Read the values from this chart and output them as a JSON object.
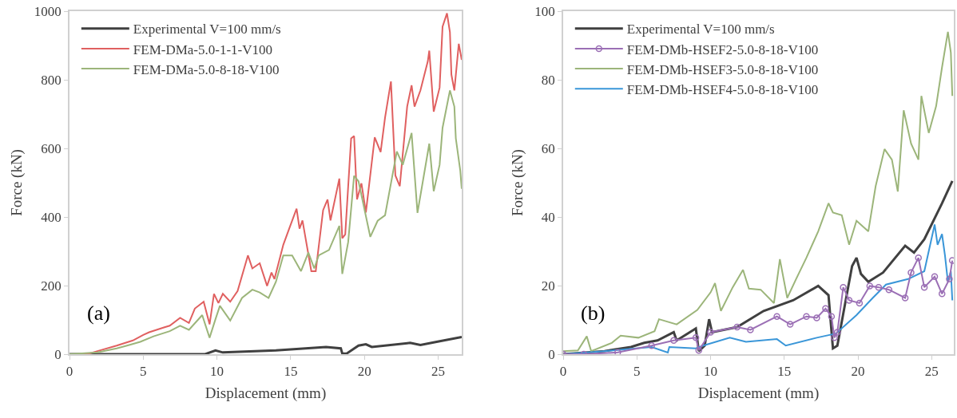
{
  "chart_data": [
    {
      "type": "line",
      "xlabel": "Displacement (mm)",
      "ylabel": "Force (kN)",
      "xlim": [
        0,
        26.6
      ],
      "ylim": [
        0,
        1000
      ],
      "xticks": [
        0,
        5,
        10,
        15,
        20,
        25
      ],
      "yticks": [
        0,
        200,
        400,
        600,
        800,
        1000
      ],
      "legend": "top left",
      "annotations": [
        "(a)"
      ],
      "series": [
        {
          "name": "Experimental V=100 mm/s",
          "color": "#404040",
          "x": [
            0,
            9.2,
            9.9,
            10.4,
            14,
            17.4,
            18.4,
            18.5,
            18.8,
            19.6,
            20.1,
            20.5,
            23.1,
            23.8,
            24.9,
            26.6
          ],
          "values": [
            0,
            0,
            11,
            5,
            11,
            21,
            17,
            2,
            2,
            25,
            29,
            21,
            33,
            27,
            36,
            50
          ]
        },
        {
          "name": "FEM-DMa-5.0-1-1-V100",
          "color": "#e06060",
          "x": [
            0,
            1.2,
            1.9,
            3.2,
            4.3,
            5,
            5.4,
            5.9,
            6.4,
            6.8,
            7.5,
            8.1,
            8.5,
            9.1,
            9.5,
            9.8,
            10.1,
            10.4,
            10.9,
            11.4,
            12.1,
            12.4,
            12.9,
            13.4,
            13.7,
            13.9,
            14.5,
            14.9,
            15.4,
            15.6,
            15.8,
            16.4,
            16.7,
            17.2,
            17.5,
            17.7,
            18.3,
            18.5,
            18.7,
            19.1,
            19.3,
            19.5,
            19.8,
            20.1,
            20.7,
            21.1,
            21.4,
            21.8,
            22.1,
            22.4,
            22.9,
            23.2,
            23.4,
            23.8,
            24.3,
            24.4,
            24.7,
            25.1,
            25.3,
            25.6,
            25.8,
            25.9,
            26.1,
            26.4,
            26.6
          ],
          "values": [
            0,
            0,
            9,
            25,
            40,
            56,
            64,
            71,
            78,
            83,
            106,
            91,
            133,
            153,
            87,
            176,
            149,
            176,
            153,
            184,
            288,
            250,
            265,
            199,
            238,
            219,
            319,
            366,
            424,
            366,
            390,
            242,
            242,
            420,
            451,
            390,
            512,
            338,
            349,
            629,
            636,
            451,
            498,
            413,
            632,
            589,
            690,
            795,
            521,
            490,
            722,
            784,
            722,
            769,
            854,
            885,
            707,
            777,
            955,
            994,
            939,
            815,
            769,
            905,
            858
          ]
        },
        {
          "name": "FEM-DMa-5.0-8-18-V100",
          "color": "#9cb57a",
          "x": [
            0,
            1.9,
            3.2,
            3.9,
            4.8,
            5.7,
            6.8,
            7.5,
            8.1,
            9,
            9.5,
            9.9,
            10.2,
            10.9,
            11.7,
            12.4,
            12.9,
            13.5,
            14,
            14.5,
            15.1,
            15.7,
            16.2,
            16.6,
            16.9,
            17.6,
            18.3,
            18.5,
            18.9,
            19.3,
            19.6,
            20.4,
            20.9,
            21.4,
            22.2,
            22.6,
            23.2,
            23.6,
            24.4,
            24.7,
            25.1,
            25.3,
            25.8,
            26.1,
            26.2,
            26.5,
            26.6
          ],
          "values": [
            0,
            5,
            17,
            25,
            36,
            52,
            67,
            83,
            71,
            114,
            48,
            102,
            141,
            98,
            164,
            188,
            180,
            164,
            211,
            288,
            288,
            242,
            296,
            250,
            288,
            304,
            374,
            234,
            327,
            520,
            504,
            342,
            389,
            405,
            591,
            552,
            645,
            412,
            614,
            475,
            552,
            660,
            769,
            722,
            629,
            536,
            482
          ]
        }
      ]
    },
    {
      "type": "line",
      "xlabel": "Displacement (mm)",
      "ylabel": "Force (kN)",
      "xlim": [
        0,
        26.5
      ],
      "ylim": [
        0,
        100
      ],
      "xticks": [
        0,
        5,
        10,
        15,
        20,
        25
      ],
      "yticks": [
        0,
        20,
        40,
        60,
        80,
        100
      ],
      "legend": "top left",
      "annotations": [
        "(b)"
      ],
      "series": [
        {
          "name": "Experimental V=100 mm/s",
          "color": "#404040",
          "x": [
            0,
            2.8,
            4.6,
            5.5,
            6.4,
            7.5,
            7.7,
            9,
            9.2,
            9.6,
            9.9,
            10.1,
            11.8,
            13.6,
            15.6,
            17.3,
            18,
            18.3,
            18.6,
            19,
            19.6,
            19.9,
            20.2,
            20.7,
            21.7,
            23.2,
            23.8,
            24.5,
            25.7,
            26.4
          ],
          "values": [
            0,
            0.9,
            2.1,
            3.3,
            4,
            6.4,
            4,
            7.5,
            0.9,
            2.5,
            10.2,
            6.4,
            7.9,
            12.6,
            15.7,
            19.9,
            17.2,
            1.7,
            2.5,
            11.8,
            25.7,
            28.1,
            23.4,
            21.1,
            23.8,
            31.6,
            29.6,
            33.5,
            44,
            50.5
          ]
        },
        {
          "name": "FEM-DMb-HSEF2-5.0-8-18-V100",
          "color": "#9b6fb5",
          "marker": "circle",
          "x": [
            0,
            1.4,
            3.7,
            6,
            7.5,
            9,
            9.2,
            10,
            11.8,
            12.7,
            14.5,
            15.4,
            16.5,
            17.2,
            17.8,
            18.2,
            18.4,
            18.6,
            19,
            19.4,
            20.1,
            20.8,
            21.4,
            22.1,
            23.2,
            23.6,
            24.1,
            24.5,
            25.2,
            25.7,
            26.2,
            26.4
          ],
          "values": [
            0,
            0,
            0.5,
            2.5,
            4,
            4.8,
            1.1,
            6.4,
            7.9,
            7.1,
            11,
            8.7,
            11,
            10.6,
            13.3,
            11,
            4.8,
            6.4,
            19.5,
            15.7,
            14.9,
            19.9,
            19.5,
            18.8,
            16.4,
            23.8,
            28.1,
            19.5,
            22.6,
            17.6,
            21.9,
            27.3
          ]
        },
        {
          "name": "FEM-DMb-HSEF3-5.0-8-18-V100",
          "color": "#9cb57a",
          "x": [
            0,
            1,
            1.6,
            1.9,
            3.3,
            3.9,
            5.1,
            6.2,
            6.5,
            7.7,
            9.1,
            10,
            10.3,
            10.7,
            11.5,
            12.2,
            12.6,
            13.4,
            14.3,
            14.7,
            15.2,
            15.8,
            16.5,
            17.3,
            18,
            18.3,
            18.9,
            19.4,
            19.9,
            20.7,
            21.2,
            21.8,
            22.3,
            22.7,
            23.1,
            23.6,
            24.1,
            24.3,
            24.8,
            25.3,
            25.7,
            26.1,
            26.3,
            26.4
          ],
          "values": [
            0.9,
            1.1,
            5.2,
            0.9,
            3.3,
            5.4,
            4.8,
            6.7,
            10.2,
            8.7,
            12.9,
            18,
            20.7,
            12.6,
            19.5,
            24.6,
            19.1,
            18.8,
            14.9,
            27.7,
            16.4,
            21.9,
            28.1,
            35.8,
            44,
            41.3,
            40.5,
            31.9,
            38.9,
            35.8,
            49,
            59.8,
            56.7,
            47.4,
            71.1,
            61.4,
            56.7,
            75.3,
            64.5,
            72.3,
            83.6,
            94,
            87.9,
            75.3
          ]
        },
        {
          "name": "FEM-DMb-HSEF4-5.0-8-18-V100",
          "color": "#3a96d8",
          "x": [
            0,
            2.8,
            6,
            7.1,
            7.2,
            9,
            9.5,
            11.3,
            12.4,
            14.5,
            15.1,
            17.2,
            18.5,
            19.9,
            21,
            21.9,
            23.4,
            24.5,
            25.2,
            25.4,
            25.7,
            25.9,
            26.1,
            26.3,
            26.4
          ],
          "values": [
            0,
            0.9,
            2.1,
            0.5,
            2.1,
            1.7,
            2.5,
            4.8,
            3.6,
            4.4,
            2.5,
            4.8,
            6,
            11.4,
            16.4,
            20.3,
            21.9,
            24.2,
            37.8,
            31.9,
            35,
            28.8,
            21.1,
            24.2,
            15.7
          ]
        }
      ]
    }
  ]
}
